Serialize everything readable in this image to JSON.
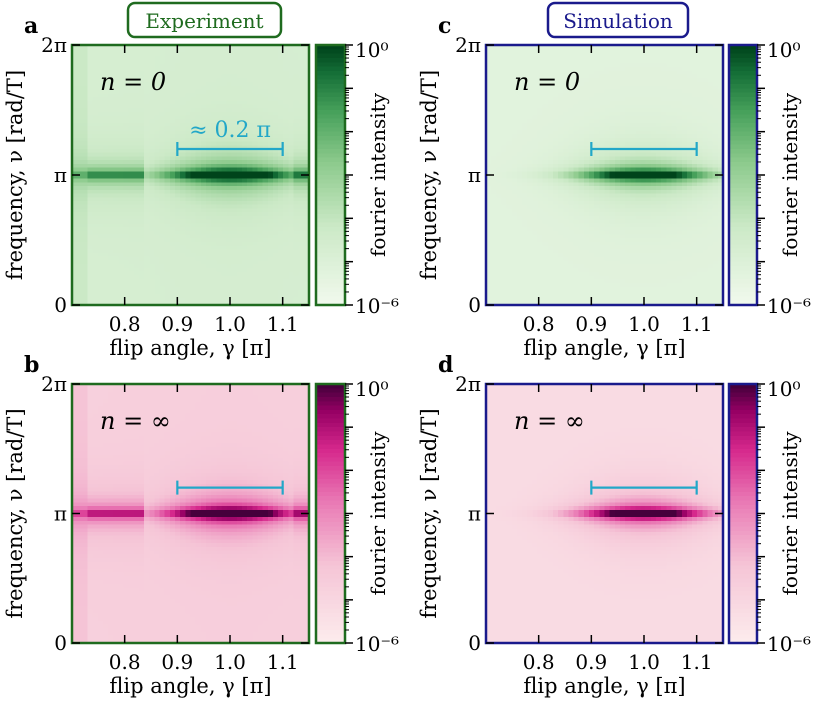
{
  "columns": [
    {
      "title": "Experiment",
      "color": "#1f6b1f"
    },
    {
      "title": "Simulation",
      "color": "#1a1a8c"
    }
  ],
  "chart_data": [
    {
      "type": "heatmap",
      "panel": "a",
      "source": "Experiment",
      "n_label": "n = 0",
      "colormap": "Greens",
      "xlabel": "flip angle, γ [π]",
      "ylabel": "frequency, ν [rad/T]",
      "xlim": [
        0.7,
        1.15
      ],
      "ylim": [
        0,
        2
      ],
      "x_ticks": [
        0.8,
        0.9,
        1.0,
        1.1
      ],
      "x_tick_labels": [
        "0.8",
        "0.9",
        "1.0",
        "1.1"
      ],
      "y_ticks": [
        0,
        1,
        2
      ],
      "y_tick_labels": [
        "0",
        "π",
        "2π"
      ],
      "colorbar": {
        "label": "fourier intensity",
        "min_label": "10⁻⁶",
        "max_label": "10⁰",
        "min": 1e-06,
        "max": 1,
        "scale": "log"
      },
      "peak_frequency_pi": 1.0,
      "peak_center_flip_angle": 1.0,
      "annotation": {
        "text": "≈ 0.2 π",
        "x_range": [
          0.9,
          1.1
        ],
        "y": 1.2,
        "color": "#22a7c8"
      }
    },
    {
      "type": "heatmap",
      "panel": "b",
      "source": "Experiment",
      "n_label": "n = ∞",
      "colormap": "PuRd",
      "xlabel": "flip angle, γ [π]",
      "ylabel": "frequency, ν [rad/T]",
      "xlim": [
        0.7,
        1.15
      ],
      "ylim": [
        0,
        2
      ],
      "x_ticks": [
        0.8,
        0.9,
        1.0,
        1.1
      ],
      "x_tick_labels": [
        "0.8",
        "0.9",
        "1.0",
        "1.1"
      ],
      "y_ticks": [
        0,
        1,
        2
      ],
      "y_tick_labels": [
        "0",
        "π",
        "2π"
      ],
      "colorbar": {
        "label": "fourier intensity",
        "min_label": "10⁻⁶",
        "max_label": "10⁰",
        "min": 1e-06,
        "max": 1,
        "scale": "log"
      },
      "peak_frequency_pi": 1.0,
      "peak_center_flip_angle": 1.0,
      "annotation": {
        "text": "",
        "x_range": [
          0.9,
          1.1
        ],
        "y": 1.2,
        "color": "#22a7c8"
      }
    },
    {
      "type": "heatmap",
      "panel": "c",
      "source": "Simulation",
      "n_label": "n = 0",
      "colormap": "Greens",
      "xlabel": "flip angle, γ [π]",
      "ylabel": "frequency, ν [rad/T]",
      "xlim": [
        0.7,
        1.15
      ],
      "ylim": [
        0,
        2
      ],
      "x_ticks": [
        0.8,
        0.9,
        1.0,
        1.1
      ],
      "x_tick_labels": [
        "0.8",
        "0.9",
        "1.0",
        "1.1"
      ],
      "y_ticks": [
        0,
        1,
        2
      ],
      "y_tick_labels": [
        "0",
        "π",
        "2π"
      ],
      "colorbar": {
        "label": "fourier intensity",
        "min_label": "10⁻⁶",
        "max_label": "10⁰",
        "min": 1e-06,
        "max": 1,
        "scale": "log"
      },
      "peak_frequency_pi": 1.0,
      "peak_center_flip_angle": 1.0,
      "annotation": {
        "text": "",
        "x_range": [
          0.9,
          1.1
        ],
        "y": 1.2,
        "color": "#22a7c8"
      }
    },
    {
      "type": "heatmap",
      "panel": "d",
      "source": "Simulation",
      "n_label": "n = ∞",
      "colormap": "PuRd",
      "xlabel": "flip angle, γ [π]",
      "ylabel": "frequency, ν [rad/T]",
      "xlim": [
        0.7,
        1.15
      ],
      "ylim": [
        0,
        2
      ],
      "x_ticks": [
        0.8,
        0.9,
        1.0,
        1.1
      ],
      "x_tick_labels": [
        "0.8",
        "0.9",
        "1.0",
        "1.1"
      ],
      "y_ticks": [
        0,
        1,
        2
      ],
      "y_tick_labels": [
        "0",
        "π",
        "2π"
      ],
      "colorbar": {
        "label": "fourier intensity",
        "min_label": "10⁻⁶",
        "max_label": "10⁰",
        "min": 1e-06,
        "max": 1,
        "scale": "log"
      },
      "peak_frequency_pi": 1.0,
      "peak_center_flip_angle": 1.0,
      "annotation": {
        "text": "",
        "x_range": [
          0.9,
          1.1
        ],
        "y": 1.2,
        "color": "#22a7c8"
      }
    }
  ]
}
